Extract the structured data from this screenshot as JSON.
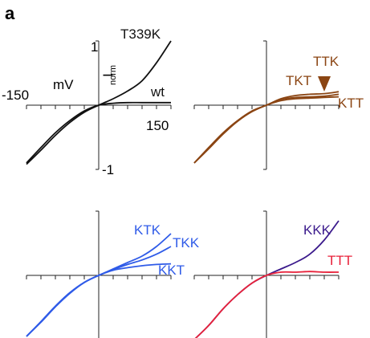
{
  "figure_label": "a",
  "chart_data": [
    {
      "type": "line",
      "panel": "top-left",
      "x_unit": "mV",
      "y_label": "I",
      "y_label_sub": "norm",
      "xlim": [
        -150,
        150
      ],
      "ylim": [
        -1,
        1
      ],
      "tick_labels": {
        "x_min": "-150",
        "x_max": "150",
        "y_max": "1",
        "y_min": "-1"
      },
      "series": [
        {
          "name": "T339K",
          "color": "#111111",
          "x": [
            -150,
            -120,
            -90,
            -60,
            -30,
            0,
            30,
            60,
            90,
            120,
            150
          ],
          "y": [
            -0.92,
            -0.7,
            -0.47,
            -0.27,
            -0.11,
            0,
            0.1,
            0.22,
            0.38,
            0.66,
            1.0
          ]
        },
        {
          "name": "wt",
          "color": "#111111",
          "x": [
            -150,
            -120,
            -90,
            -60,
            -30,
            0,
            30,
            60,
            90,
            120,
            150
          ],
          "y": [
            -0.9,
            -0.66,
            -0.43,
            -0.24,
            -0.09,
            0,
            0.03,
            0.04,
            0.04,
            0.04,
            0.04
          ]
        }
      ]
    },
    {
      "type": "line",
      "panel": "top-right",
      "xlim": [
        -150,
        150
      ],
      "ylim": [
        -1,
        1
      ],
      "annotation": "arrow-down",
      "series": [
        {
          "name": "TTK",
          "color": "#8b4513",
          "x": [
            -150,
            -120,
            -90,
            -60,
            -30,
            0,
            30,
            60,
            90,
            120,
            150
          ],
          "y": [
            -0.9,
            -0.66,
            -0.43,
            -0.24,
            -0.09,
            0,
            0.1,
            0.15,
            0.17,
            0.18,
            0.21
          ]
        },
        {
          "name": "TKT",
          "color": "#8b4513",
          "x": [
            -150,
            -120,
            -90,
            -60,
            -30,
            0,
            30,
            60,
            90,
            120,
            150
          ],
          "y": [
            -0.9,
            -0.67,
            -0.44,
            -0.25,
            -0.1,
            0,
            0.09,
            0.12,
            0.13,
            0.14,
            0.17
          ]
        },
        {
          "name": "KTT",
          "color": "#8b4513",
          "x": [
            -150,
            -120,
            -90,
            -60,
            -30,
            0,
            30,
            60,
            90,
            120,
            150
          ],
          "y": [
            -0.9,
            -0.68,
            -0.45,
            -0.25,
            -0.1,
            0,
            0.07,
            0.1,
            0.11,
            0.12,
            0.13
          ]
        }
      ]
    },
    {
      "type": "line",
      "panel": "bottom-left",
      "xlim": [
        -150,
        150
      ],
      "ylim": [
        -1,
        1
      ],
      "series": [
        {
          "name": "KTK",
          "color": "#2f5be8",
          "x": [
            -150,
            -120,
            -90,
            -60,
            -30,
            0,
            30,
            60,
            90,
            120,
            150
          ],
          "y": [
            -0.95,
            -0.72,
            -0.48,
            -0.27,
            -0.11,
            0,
            0.1,
            0.2,
            0.3,
            0.45,
            0.65
          ]
        },
        {
          "name": "TKK",
          "color": "#2f5be8",
          "x": [
            -150,
            -120,
            -90,
            -60,
            -30,
            0,
            30,
            60,
            90,
            120,
            150
          ],
          "y": [
            -0.95,
            -0.72,
            -0.48,
            -0.27,
            -0.11,
            0,
            0.09,
            0.17,
            0.24,
            0.33,
            0.45
          ]
        },
        {
          "name": "KKT",
          "color": "#2f5be8",
          "x": [
            -150,
            -120,
            -90,
            -60,
            -30,
            0,
            30,
            60,
            90,
            120,
            150
          ],
          "y": [
            -0.95,
            -0.73,
            -0.49,
            -0.28,
            -0.11,
            0,
            0.08,
            0.12,
            0.15,
            0.17,
            0.18
          ]
        }
      ]
    },
    {
      "type": "line",
      "panel": "bottom-right",
      "xlim": [
        -150,
        150
      ],
      "ylim": [
        -1,
        1
      ],
      "series": [
        {
          "name": "KKK",
          "color": "#3b1a8c",
          "x": [
            -150,
            -120,
            -90,
            -60,
            -30,
            0,
            30,
            60,
            90,
            120,
            150
          ],
          "y": [
            -1.0,
            -0.78,
            -0.52,
            -0.3,
            -0.12,
            0,
            0.1,
            0.2,
            0.33,
            0.55,
            0.85
          ]
        },
        {
          "name": "TTT",
          "color": "#e8213a",
          "x": [
            -150,
            -120,
            -90,
            -60,
            -30,
            0,
            30,
            60,
            90,
            120,
            150
          ],
          "y": [
            -1.0,
            -0.78,
            -0.52,
            -0.3,
            -0.12,
            0,
            0.05,
            0.05,
            0.06,
            0.05,
            0.05
          ]
        }
      ]
    }
  ]
}
